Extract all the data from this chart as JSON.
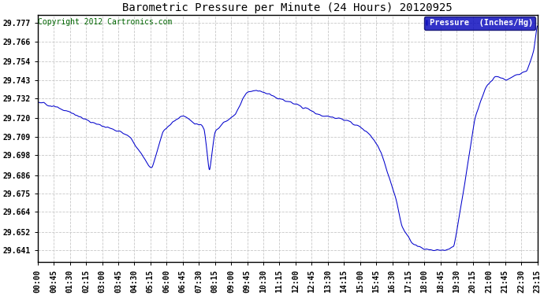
{
  "title": "Barometric Pressure per Minute (24 Hours) 20120925",
  "copyright": "Copyright 2012 Cartronics.com",
  "legend_label": "Pressure  (Inches/Hg)",
  "line_color": "#0000cc",
  "legend_bg": "#0000bb",
  "legend_text_color": "#ffffff",
  "background_color": "#ffffff",
  "grid_color": "#c8c8c8",
  "yticks": [
    29.641,
    29.652,
    29.664,
    29.675,
    29.686,
    29.698,
    29.709,
    29.72,
    29.732,
    29.743,
    29.754,
    29.766,
    29.777
  ],
  "ylim": [
    29.634,
    29.782
  ],
  "xtick_labels": [
    "00:00",
    "00:45",
    "01:30",
    "02:15",
    "03:00",
    "03:45",
    "04:30",
    "05:15",
    "06:00",
    "06:45",
    "07:30",
    "08:15",
    "09:00",
    "09:45",
    "10:30",
    "11:15",
    "12:00",
    "12:45",
    "13:30",
    "14:15",
    "15:00",
    "15:45",
    "16:30",
    "17:15",
    "18:00",
    "18:45",
    "19:30",
    "20:15",
    "21:00",
    "21:45",
    "22:30",
    "23:15"
  ],
  "key_times": [
    0,
    30,
    60,
    90,
    120,
    150,
    180,
    210,
    240,
    270,
    310,
    315,
    330,
    360,
    390,
    420,
    450,
    465,
    480,
    495,
    510,
    540,
    570,
    600,
    630,
    660,
    690,
    720,
    750,
    780,
    810,
    840,
    870,
    885,
    900,
    915,
    930,
    960,
    990,
    1020,
    1035,
    1050,
    1080,
    1110,
    1140,
    1170,
    1200,
    1230,
    1260,
    1290,
    1305,
    1320,
    1350,
    1380,
    1410,
    1430,
    1440
  ],
  "key_vals": [
    29.73,
    29.728,
    29.726,
    29.724,
    29.721,
    29.718,
    29.716,
    29.714,
    29.712,
    29.708,
    29.695,
    29.693,
    29.69,
    29.712,
    29.718,
    29.722,
    29.717,
    29.716,
    29.715,
    29.686,
    29.712,
    29.718,
    29.722,
    29.735,
    29.737,
    29.735,
    29.732,
    29.73,
    29.728,
    29.726,
    29.722,
    29.721,
    29.72,
    29.719,
    29.718,
    29.716,
    29.715,
    29.71,
    29.7,
    29.68,
    29.67,
    29.655,
    29.645,
    29.642,
    29.641,
    29.641,
    29.643,
    29.68,
    29.72,
    29.738,
    29.742,
    29.745,
    29.743,
    29.746,
    29.748,
    29.76,
    29.777
  ],
  "title_fontsize": 10,
  "tick_fontsize": 7,
  "copyright_fontsize": 7
}
